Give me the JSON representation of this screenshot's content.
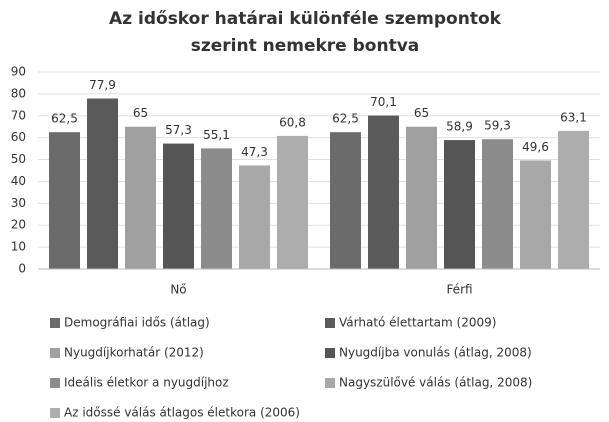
{
  "chart_data": {
    "type": "bar",
    "title": "Az időskor határai különféle szempontok szerint nemekre bontva",
    "categories": [
      "Nő",
      "Férfi"
    ],
    "series": [
      {
        "name": "Demográfiai idős (átlag)",
        "color": "#6b6b6b",
        "values": [
          62.5,
          62.5
        ],
        "value_labels": [
          "62,5",
          "62,5"
        ]
      },
      {
        "name": "Várható élettartam (2009)",
        "color": "#5a5a5a",
        "values": [
          77.9,
          70.1
        ],
        "value_labels": [
          "77,9",
          "70,1"
        ]
      },
      {
        "name": "Nyugdíjkorhatár (2012)",
        "color": "#a0a0a0",
        "values": [
          65,
          65
        ],
        "value_labels": [
          "65",
          "65"
        ]
      },
      {
        "name": "Nyugdíjba vonulás (átlag, 2008)",
        "color": "#555555",
        "values": [
          57.3,
          58.9
        ],
        "value_labels": [
          "57,3",
          "58,9"
        ]
      },
      {
        "name": "Ideális életkor a nyugdíjhoz",
        "color": "#8c8c8c",
        "values": [
          55.1,
          59.3
        ],
        "value_labels": [
          "55,1",
          "59,3"
        ]
      },
      {
        "name": "Nagyszülővé válás (átlag, 2008)",
        "color": "#a8a8a8",
        "values": [
          47.3,
          49.6
        ],
        "value_labels": [
          "47,3",
          "49,6"
        ]
      },
      {
        "name": "Az időssé válás átlagos életkora (2006)",
        "color": "#adadad",
        "values": [
          60.8,
          63.1
        ],
        "value_labels": [
          "60,8",
          "63,1"
        ]
      }
    ],
    "ylim": [
      0,
      90
    ],
    "yticks": [
      0,
      10,
      20,
      30,
      40,
      50,
      60,
      70,
      80,
      90
    ],
    "grid": true,
    "legend": "bottom"
  }
}
